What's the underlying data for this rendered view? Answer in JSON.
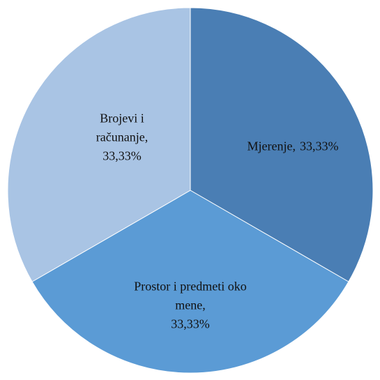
{
  "chart_data": {
    "type": "pie",
    "categories": [
      "Mjerenje,",
      "Prostor i predmeti oko mene,",
      "Brojevi i računanje,"
    ],
    "values": [
      33.33,
      33.33,
      33.33
    ],
    "value_labels": [
      "33,33%",
      "33,33%",
      "33,33%"
    ],
    "colors": [
      "#4a7eb4",
      "#5b9bd5",
      "#a9c4e4"
    ]
  }
}
